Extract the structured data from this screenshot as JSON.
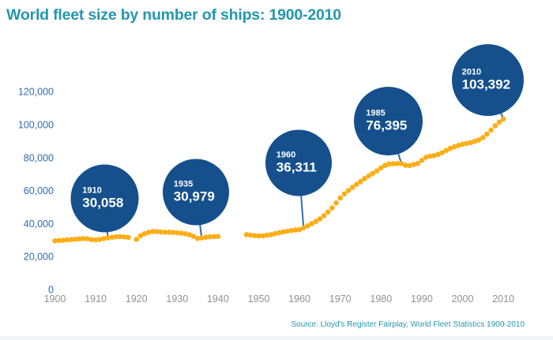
{
  "title": "World fleet size by number of ships: 1900-2010",
  "source_note": "Source: Lloyd's Register Fairplay, World Fleet Statistics 1900-2010",
  "colors": {
    "title_teal": "#2397ad",
    "axis_label_blue": "#2e6cb2",
    "xtick_gray": "#8f9193",
    "dot_orange": "#fbae17",
    "bubble_blue": "#15508c",
    "pointer_line_blue": "#2d6db4",
    "bubble_text": "#ffffff",
    "footer_strip": "#f3f5f6"
  },
  "chart_data": {
    "type": "scatter",
    "title": "World fleet size by number of ships: 1900-2010",
    "xlabel": "",
    "ylabel": "",
    "grid": false,
    "legend": false,
    "xlim": [
      1898,
      2013
    ],
    "ylim": [
      0,
      125000
    ],
    "x_ticks": [
      1900,
      1910,
      1920,
      1930,
      1940,
      1950,
      1960,
      1970,
      1980,
      1990,
      2000,
      2010
    ],
    "y_ticks": [
      0,
      20000,
      40000,
      60000,
      80000,
      100000,
      120000
    ],
    "data_gaps_years": [
      [
        1919,
        1919
      ],
      [
        1941,
        1946
      ]
    ],
    "series": [
      {
        "name": "World fleet size (number of ships)",
        "points": [
          [
            1900,
            29500
          ],
          [
            1901,
            29700
          ],
          [
            1902,
            29900
          ],
          [
            1903,
            30100
          ],
          [
            1904,
            30300
          ],
          [
            1905,
            30500
          ],
          [
            1906,
            30700
          ],
          [
            1907,
            30900
          ],
          [
            1908,
            30800
          ],
          [
            1909,
            30300
          ],
          [
            1910,
            30058
          ],
          [
            1911,
            30400
          ],
          [
            1912,
            30900
          ],
          [
            1913,
            31300
          ],
          [
            1914,
            31700
          ],
          [
            1915,
            32000
          ],
          [
            1916,
            32100
          ],
          [
            1917,
            31900
          ],
          [
            1918,
            31600
          ],
          [
            1920,
            30400
          ],
          [
            1921,
            32600
          ],
          [
            1922,
            33900
          ],
          [
            1923,
            34700
          ],
          [
            1924,
            35200
          ],
          [
            1925,
            35100
          ],
          [
            1926,
            34900
          ],
          [
            1927,
            34700
          ],
          [
            1928,
            34800
          ],
          [
            1929,
            34600
          ],
          [
            1930,
            34400
          ],
          [
            1931,
            34200
          ],
          [
            1932,
            33800
          ],
          [
            1933,
            33200
          ],
          [
            1934,
            32300
          ],
          [
            1935,
            30979
          ],
          [
            1936,
            31300
          ],
          [
            1937,
            31700
          ],
          [
            1938,
            32000
          ],
          [
            1939,
            32100
          ],
          [
            1940,
            32200
          ],
          [
            1947,
            33300
          ],
          [
            1948,
            33000
          ],
          [
            1949,
            32700
          ],
          [
            1950,
            32500
          ],
          [
            1951,
            32600
          ],
          [
            1952,
            32900
          ],
          [
            1953,
            33300
          ],
          [
            1954,
            33900
          ],
          [
            1955,
            34400
          ],
          [
            1956,
            34900
          ],
          [
            1957,
            35400
          ],
          [
            1958,
            35800
          ],
          [
            1959,
            36100
          ],
          [
            1960,
            36311
          ],
          [
            1961,
            37400
          ],
          [
            1962,
            38600
          ],
          [
            1963,
            39900
          ],
          [
            1964,
            41300
          ],
          [
            1965,
            42800
          ],
          [
            1966,
            44800
          ],
          [
            1967,
            47000
          ],
          [
            1968,
            49500
          ],
          [
            1969,
            52500
          ],
          [
            1970,
            55500
          ],
          [
            1971,
            58000
          ],
          [
            1972,
            60000
          ],
          [
            1973,
            62000
          ],
          [
            1974,
            63800
          ],
          [
            1975,
            65500
          ],
          [
            1976,
            67300
          ],
          [
            1977,
            69000
          ],
          [
            1978,
            70500
          ],
          [
            1979,
            72000
          ],
          [
            1980,
            73800
          ],
          [
            1981,
            75300
          ],
          [
            1982,
            76100
          ],
          [
            1983,
            76300
          ],
          [
            1984,
            76400
          ],
          [
            1985,
            76395
          ],
          [
            1986,
            75400
          ],
          [
            1987,
            75200
          ],
          [
            1988,
            75800
          ],
          [
            1989,
            76400
          ],
          [
            1990,
            78300
          ],
          [
            1991,
            80200
          ],
          [
            1992,
            80900
          ],
          [
            1993,
            81200
          ],
          [
            1994,
            81900
          ],
          [
            1995,
            83000
          ],
          [
            1996,
            84300
          ],
          [
            1997,
            85600
          ],
          [
            1998,
            86600
          ],
          [
            1999,
            87400
          ],
          [
            2000,
            88100
          ],
          [
            2001,
            88600
          ],
          [
            2002,
            89100
          ],
          [
            2003,
            89900
          ],
          [
            2004,
            90700
          ],
          [
            2005,
            92200
          ],
          [
            2006,
            94300
          ],
          [
            2007,
            96700
          ],
          [
            2008,
            99300
          ],
          [
            2009,
            101500
          ],
          [
            2010,
            103392
          ]
        ]
      }
    ],
    "annotations": [
      {
        "year_label": "1910",
        "value": 30058,
        "value_label": "30,058",
        "pointer_year": 1913
      },
      {
        "year_label": "1935",
        "value": 30979,
        "value_label": "30,979",
        "pointer_year": 1936
      },
      {
        "year_label": "1960",
        "value": 36311,
        "value_label": "36,311",
        "pointer_year": 1961
      },
      {
        "year_label": "1985",
        "value": 76395,
        "value_label": "76,395",
        "pointer_year": 1985
      },
      {
        "year_label": "2010",
        "value": 103392,
        "value_label": "103,392",
        "pointer_year": 2010
      }
    ]
  }
}
